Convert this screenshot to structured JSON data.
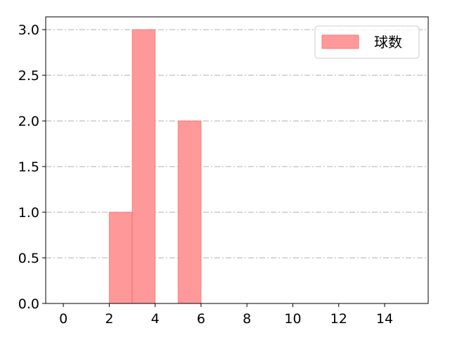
{
  "chart_data": {
    "type": "bar",
    "title": "",
    "xlabel": "",
    "ylabel": "",
    "bins": [
      {
        "x0": 2,
        "x1": 3,
        "value": 1
      },
      {
        "x0": 3,
        "x1": 4,
        "value": 3
      },
      {
        "x0": 5,
        "x1": 6,
        "value": 2
      }
    ],
    "series_name": "球数",
    "xlim": [
      -0.77,
      15.9
    ],
    "ylim": [
      0,
      3.14
    ],
    "x_ticks": [
      "0",
      "2",
      "4",
      "6",
      "8",
      "10",
      "12",
      "14"
    ],
    "y_ticks": [
      "0.0",
      "0.5",
      "1.0",
      "1.5",
      "2.0",
      "2.5",
      "3.0"
    ],
    "grid": "horizontal dash-dot",
    "legend_position": "top-right",
    "bar_color": "#ff9999",
    "bar_edge_color": "#ff5555"
  }
}
